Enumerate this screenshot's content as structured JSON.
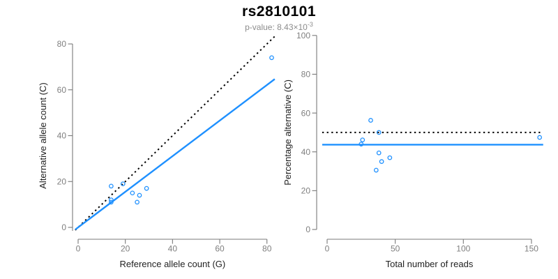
{
  "header": {
    "title": "rs2810101",
    "p_value_label": "p-value: 8.43×10",
    "p_value_exponent": "-3"
  },
  "colors": {
    "accent_blue": "#1E90FF",
    "dotted_black": "#000000",
    "axis_gray": "#7a7a7a",
    "tick_label_gray": "#7f7f7f",
    "axis_title_color": "#1f1f1f",
    "subtitle_gray": "#8c8c8c",
    "background": "#ffffff"
  },
  "chart_data": [
    {
      "type": "scatter",
      "panel": "left",
      "xlabel": "Reference allele count (G)",
      "ylabel": "Alternative allele count (C)",
      "xlim": [
        0,
        82
      ],
      "ylim": [
        0,
        82
      ],
      "xticks": [
        0,
        20,
        40,
        60,
        80
      ],
      "yticks": [
        0,
        20,
        40,
        60,
        80
      ],
      "grid": false,
      "legend": "none",
      "marker": "open-circle",
      "x": [
        14,
        19,
        14,
        14,
        23,
        29,
        26,
        25,
        82
      ],
      "y": [
        18,
        19,
        12,
        11,
        15,
        17,
        14,
        11,
        74
      ],
      "lines": [
        {
          "name": "identity-line",
          "style": "dotted",
          "color": "#000000",
          "slope": 1,
          "intercept": 0
        },
        {
          "name": "fit-line",
          "style": "solid",
          "color": "#1E90FF",
          "slope": 0.7764,
          "intercept": 0
        }
      ]
    },
    {
      "type": "scatter",
      "panel": "right",
      "xlabel": "Total number of reads",
      "ylabel": "Percentage alternative (C)",
      "xlim": [
        0,
        156
      ],
      "ylim": [
        0,
        100
      ],
      "xticks": [
        0,
        50,
        100,
        150
      ],
      "yticks": [
        0,
        20,
        40,
        60,
        80,
        100
      ],
      "grid": false,
      "legend": "none",
      "marker": "open-circle",
      "x": [
        32,
        38,
        26,
        25,
        38,
        46,
        40,
        36,
        156
      ],
      "y": [
        56.25,
        50.0,
        46.15,
        44.0,
        39.47,
        36.96,
        35.0,
        30.56,
        47.44
      ],
      "lines": [
        {
          "name": "null-line-50pct",
          "style": "dotted",
          "color": "#000000",
          "value": 50
        },
        {
          "name": "mean-line",
          "style": "solid",
          "color": "#1E90FF",
          "value": 43.7
        }
      ]
    }
  ]
}
